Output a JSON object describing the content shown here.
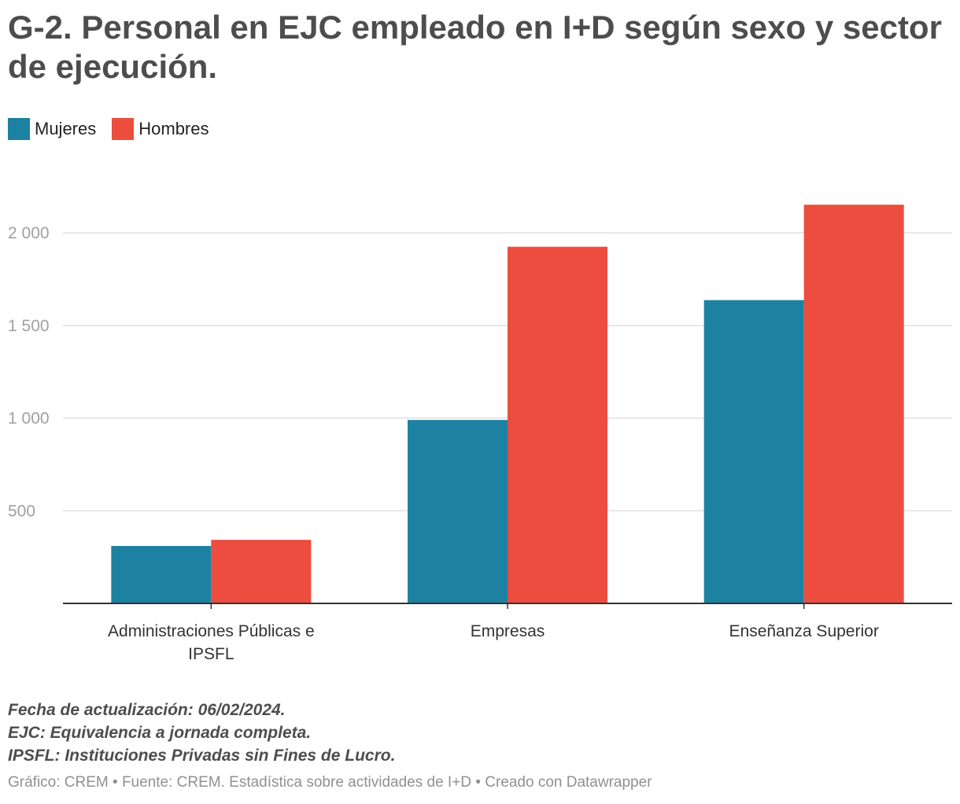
{
  "title": "G-2. Personal en EJC empleado en I+D según sexo y sector de ejecución.",
  "chart_data": {
    "type": "bar",
    "categories": [
      [
        "Administraciones Públicas e",
        "IPSFL"
      ],
      [
        "Empresas"
      ],
      [
        "Enseñanza Superior"
      ]
    ],
    "series": [
      {
        "name": "Mujeres",
        "color": "#1d81a2",
        "values": [
          310,
          990,
          1637
        ]
      },
      {
        "name": "Hombres",
        "color": "#ec4d3e",
        "values": [
          343,
          1925,
          2152
        ]
      }
    ],
    "yticks": [
      500,
      1000,
      1500,
      2000
    ],
    "ytick_labels": [
      "500",
      "1 000",
      "1 500",
      "2 000"
    ],
    "ylim": [
      0,
      2300
    ],
    "grid": true,
    "legend_position": "top-left"
  },
  "notes": [
    "Fecha de actualización: 06/02/2024.",
    "EJC: Equivalencia a jornada completa.",
    "IPSFL: Instituciones Privadas sin Fines de Lucro."
  ],
  "credit": "Gráfico: CREM • Fuente: CREM. Estadística sobre actividades de I+D • Creado con Datawrapper"
}
